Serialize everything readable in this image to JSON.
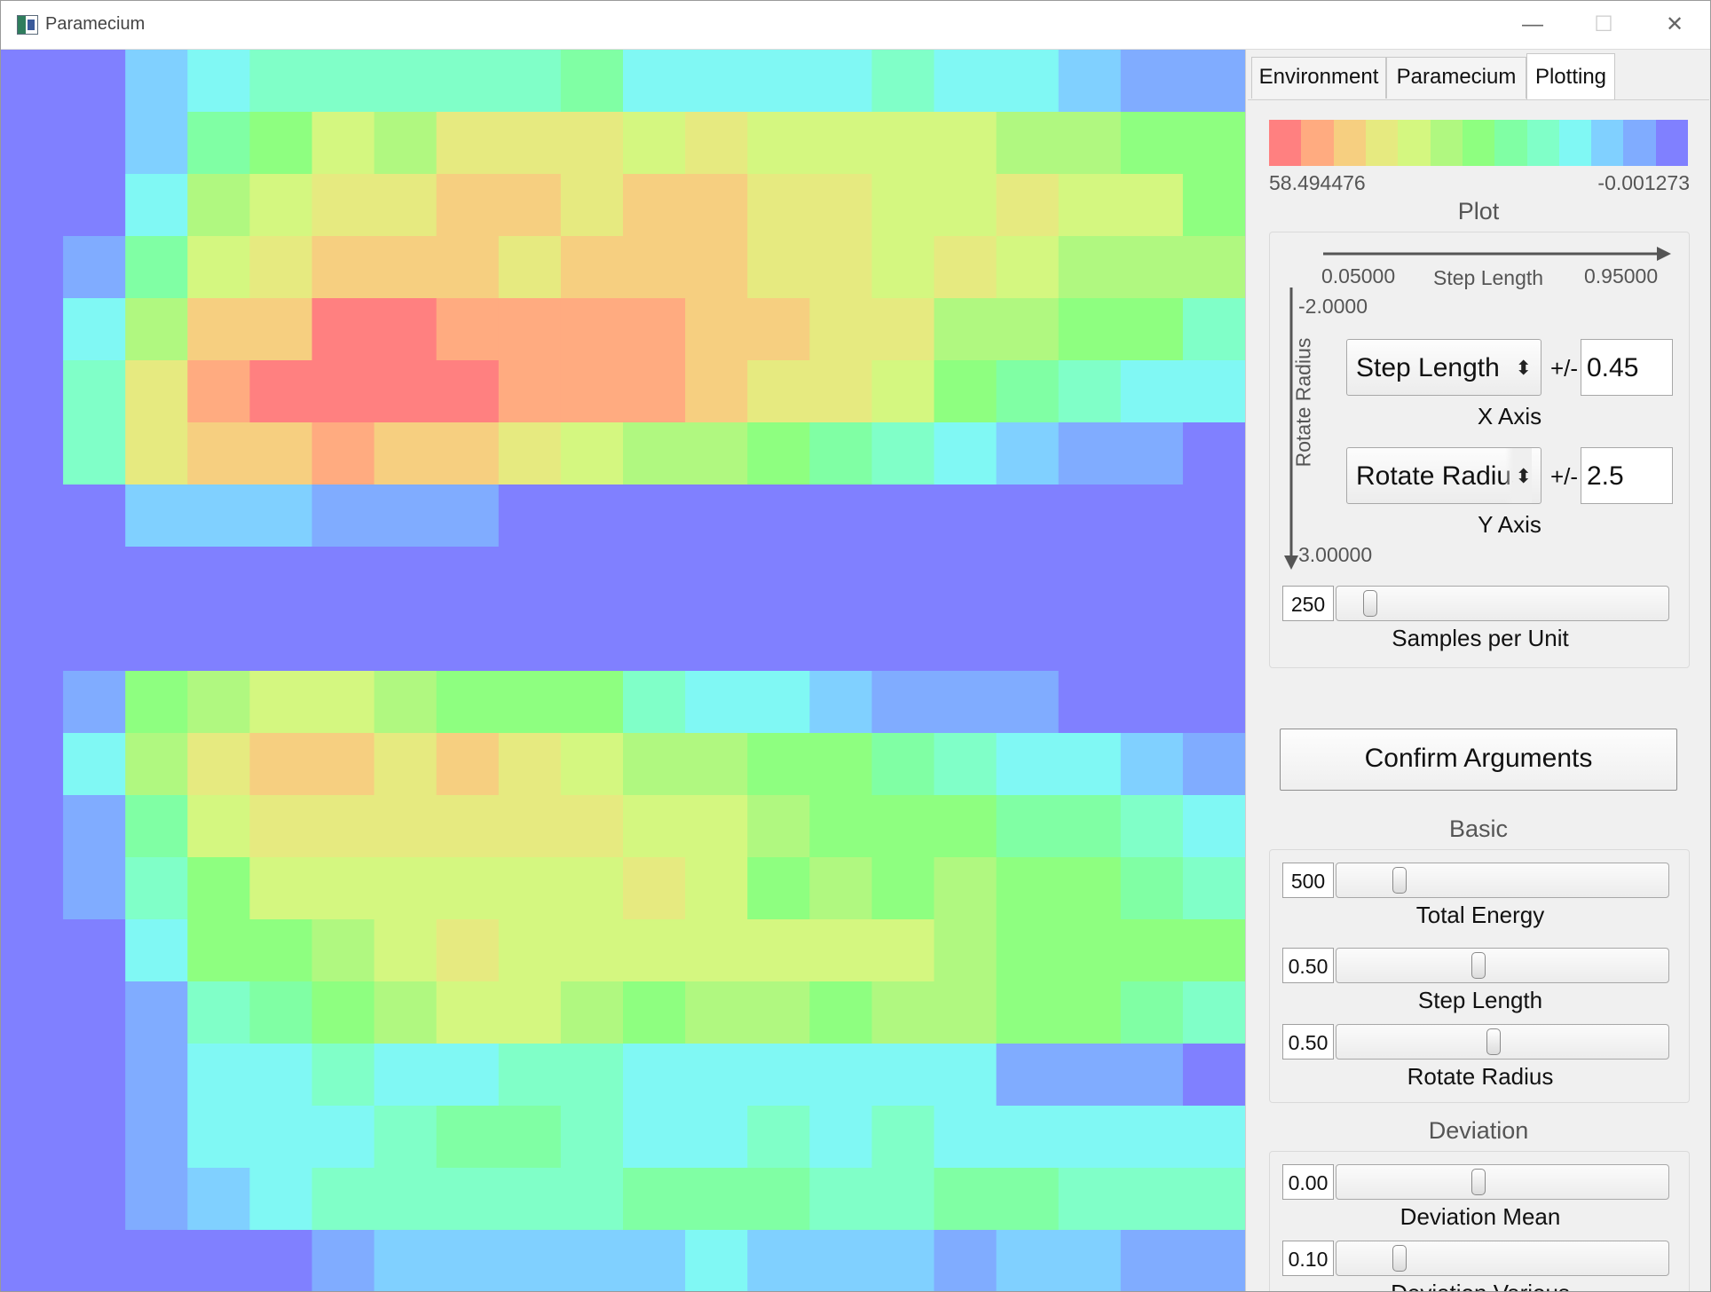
{
  "window": {
    "title": "Paramecium"
  },
  "tabs": [
    {
      "label": "Environment",
      "active": false
    },
    {
      "label": "Paramecium",
      "active": false
    },
    {
      "label": "Plotting",
      "active": true
    }
  ],
  "legend": {
    "max_label": "58.494476",
    "min_label": "-0.001273",
    "colors": [
      "#ff8080",
      "#ffab80",
      "#f6cf80",
      "#e6ea80",
      "#d4f780",
      "#b0f880",
      "#8eff80",
      "#80ffa4",
      "#80ffc8",
      "#80f8f4",
      "#80d0ff",
      "#80acff",
      "#8080ff"
    ]
  },
  "plot_group": {
    "title": "Plot",
    "x_range_min": "0.05000",
    "x_axis_name": "Step Length",
    "x_range_max": "0.95000",
    "y_axis_name": "Rotate Radius",
    "y_range_min": "-2.0000",
    "y_range_max": "3.00000",
    "x_param": "Step Length",
    "x_tolerance_label": "+/-",
    "x_tolerance": "0.45",
    "x_caption": "X Axis",
    "y_param": "Rotate Radius",
    "y_tolerance_label": "+/-",
    "y_tolerance": "2.5",
    "y_caption": "Y Axis",
    "samples": {
      "value": "250",
      "caption": "Samples per Unit",
      "fraction": 0.08
    }
  },
  "confirm_label": "Confirm Arguments",
  "basic_group": {
    "title": "Basic",
    "sliders": [
      {
        "value": "500",
        "caption": "Total Energy",
        "fraction": 0.17
      },
      {
        "value": "0.50",
        "caption": "Step Length",
        "fraction": 0.42
      },
      {
        "value": "0.50",
        "caption": "Rotate Radius",
        "fraction": 0.47
      }
    ]
  },
  "deviation_group": {
    "title": "Deviation",
    "sliders": [
      {
        "value": "0.00",
        "caption": "Deviation Mean",
        "fraction": 0.42
      },
      {
        "value": "0.10",
        "caption": "Deviation Various",
        "fraction": 0.17
      }
    ]
  },
  "heatmap": {
    "palette": [
      "#8080ff",
      "#80acff",
      "#80d0ff",
      "#80f8f4",
      "#80ffc8",
      "#80ffa4",
      "#8eff80",
      "#b0f880",
      "#d4f780",
      "#e6ea80",
      "#f6cf80",
      "#ffab80",
      "#ff8080"
    ],
    "grid": [
      "03335443333332",
      "45677789998771",
      "36898889777761",
      "18988999889786",
      "07891010129999887",
      "1121212111010997545",
      "0"
    ]
  }
}
